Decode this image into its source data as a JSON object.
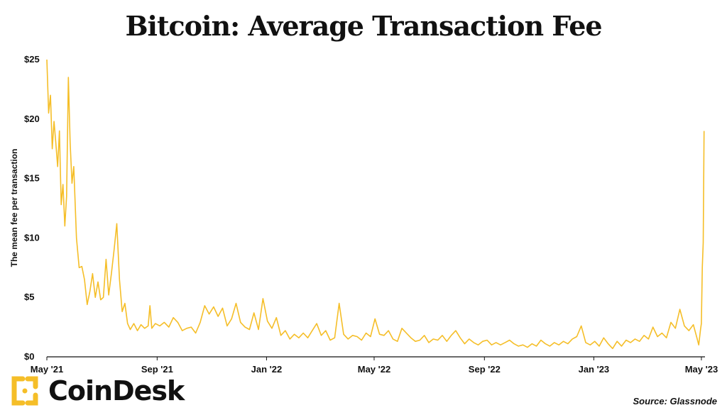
{
  "chart_data": {
    "type": "line",
    "title": "Bitcoin: Average Transaction Fee",
    "ylabel": "The mean fee per transaction",
    "xlabel": "",
    "ylim": [
      0,
      25
    ],
    "y_ticks": [
      0,
      5,
      10,
      15,
      20,
      25
    ],
    "y_tick_labels": [
      "$0",
      "$5",
      "$10",
      "$15",
      "$20",
      "$25"
    ],
    "x_ticks": [
      "2021-05-01",
      "2021-09-01",
      "2022-01-01",
      "2022-05-01",
      "2022-09-01",
      "2023-01-01",
      "2023-05-01"
    ],
    "x_tick_labels": [
      "May '21",
      "Sep '21",
      "Jan '22",
      "May '22",
      "Sep '22",
      "Jan '23",
      "May '23"
    ],
    "xlim": [
      "2021-05-01",
      "2023-05-05"
    ],
    "grid": false,
    "line_color": "#F5BE28",
    "series": [
      {
        "x": [
          "2021-05-01",
          "2021-05-03",
          "2021-05-05",
          "2021-05-07",
          "2021-05-09",
          "2021-05-11",
          "2021-05-13",
          "2021-05-15",
          "2021-05-17",
          "2021-05-19",
          "2021-05-21",
          "2021-05-23",
          "2021-05-25",
          "2021-05-27",
          "2021-05-29",
          "2021-05-31",
          "2021-06-03",
          "2021-06-06",
          "2021-06-09",
          "2021-06-12",
          "2021-06-15",
          "2021-06-18",
          "2021-06-21",
          "2021-06-24",
          "2021-06-27",
          "2021-06-30",
          "2021-07-03",
          "2021-07-06",
          "2021-07-09",
          "2021-07-12",
          "2021-07-15",
          "2021-07-18",
          "2021-07-21",
          "2021-07-24",
          "2021-07-27",
          "2021-07-30",
          "2021-08-02",
          "2021-08-06",
          "2021-08-10",
          "2021-08-14",
          "2021-08-18",
          "2021-08-22",
          "2021-08-24",
          "2021-08-26",
          "2021-08-30",
          "2021-09-04",
          "2021-09-09",
          "2021-09-14",
          "2021-09-19",
          "2021-09-24",
          "2021-09-29",
          "2021-10-04",
          "2021-10-09",
          "2021-10-14",
          "2021-10-19",
          "2021-10-24",
          "2021-10-29",
          "2021-11-03",
          "2021-11-08",
          "2021-11-13",
          "2021-11-18",
          "2021-11-23",
          "2021-11-28",
          "2021-12-03",
          "2021-12-08",
          "2021-12-13",
          "2021-12-18",
          "2021-12-23",
          "2021-12-28",
          "2022-01-02",
          "2022-01-07",
          "2022-01-12",
          "2022-01-17",
          "2022-01-22",
          "2022-01-27",
          "2022-02-01",
          "2022-02-06",
          "2022-02-11",
          "2022-02-16",
          "2022-02-21",
          "2022-02-26",
          "2022-03-03",
          "2022-03-08",
          "2022-03-13",
          "2022-03-18",
          "2022-03-23",
          "2022-03-28",
          "2022-04-02",
          "2022-04-07",
          "2022-04-12",
          "2022-04-17",
          "2022-04-22",
          "2022-04-27",
          "2022-05-02",
          "2022-05-07",
          "2022-05-12",
          "2022-05-17",
          "2022-05-22",
          "2022-05-27",
          "2022-06-01",
          "2022-06-06",
          "2022-06-11",
          "2022-06-16",
          "2022-06-21",
          "2022-06-26",
          "2022-07-01",
          "2022-07-06",
          "2022-07-11",
          "2022-07-16",
          "2022-07-21",
          "2022-07-26",
          "2022-07-31",
          "2022-08-05",
          "2022-08-10",
          "2022-08-15",
          "2022-08-20",
          "2022-08-25",
          "2022-08-30",
          "2022-09-04",
          "2022-09-09",
          "2022-09-14",
          "2022-09-19",
          "2022-09-24",
          "2022-09-29",
          "2022-10-04",
          "2022-10-09",
          "2022-10-14",
          "2022-10-19",
          "2022-10-24",
          "2022-10-29",
          "2022-11-03",
          "2022-11-08",
          "2022-11-13",
          "2022-11-18",
          "2022-11-23",
          "2022-11-28",
          "2022-12-03",
          "2022-12-08",
          "2022-12-13",
          "2022-12-18",
          "2022-12-23",
          "2022-12-28",
          "2023-01-02",
          "2023-01-07",
          "2023-01-12",
          "2023-01-17",
          "2023-01-22",
          "2023-01-27",
          "2023-02-01",
          "2023-02-06",
          "2023-02-11",
          "2023-02-16",
          "2023-02-21",
          "2023-02-26",
          "2023-03-03",
          "2023-03-08",
          "2023-03-13",
          "2023-03-18",
          "2023-03-23",
          "2023-03-28",
          "2023-04-02",
          "2023-04-07",
          "2023-04-12",
          "2023-04-17",
          "2023-04-22",
          "2023-04-26",
          "2023-04-28",
          "2023-04-30",
          "2023-05-01",
          "2023-05-02",
          "2023-05-03",
          "2023-05-04"
        ],
        "y": [
          25.0,
          20.5,
          22.0,
          17.5,
          19.8,
          18.0,
          16.0,
          19.0,
          12.8,
          14.5,
          11.0,
          13.5,
          23.5,
          18.0,
          14.6,
          16.0,
          10.0,
          7.5,
          7.6,
          6.5,
          4.4,
          5.5,
          7.0,
          5.0,
          6.3,
          4.8,
          5.0,
          8.2,
          5.2,
          7.0,
          9.0,
          11.2,
          6.5,
          3.8,
          4.5,
          2.8,
          2.3,
          2.8,
          2.2,
          2.7,
          2.4,
          2.6,
          4.3,
          2.4,
          2.8,
          2.6,
          2.9,
          2.5,
          3.3,
          2.9,
          2.2,
          2.4,
          2.5,
          2.0,
          2.9,
          4.3,
          3.6,
          4.2,
          3.4,
          4.1,
          2.6,
          3.2,
          4.5,
          2.9,
          2.5,
          2.3,
          3.7,
          2.3,
          4.9,
          3.0,
          2.4,
          3.3,
          1.8,
          2.2,
          1.5,
          1.9,
          1.6,
          2.0,
          1.6,
          2.2,
          2.8,
          1.8,
          2.2,
          1.4,
          1.6,
          4.5,
          1.9,
          1.5,
          1.8,
          1.7,
          1.4,
          2.0,
          1.7,
          3.2,
          1.9,
          1.8,
          2.2,
          1.5,
          1.3,
          2.4,
          2.0,
          1.6,
          1.3,
          1.4,
          1.8,
          1.2,
          1.5,
          1.4,
          1.8,
          1.3,
          1.8,
          2.2,
          1.6,
          1.1,
          1.5,
          1.2,
          1.0,
          1.3,
          1.4,
          1.0,
          1.2,
          1.0,
          1.2,
          1.4,
          1.1,
          0.9,
          1.0,
          0.8,
          1.1,
          0.9,
          1.4,
          1.1,
          0.9,
          1.2,
          1.0,
          1.3,
          1.1,
          1.5,
          1.7,
          2.6,
          1.2,
          1.0,
          1.3,
          0.9,
          1.6,
          1.1,
          0.7,
          1.3,
          0.9,
          1.4,
          1.2,
          1.5,
          1.3,
          1.8,
          1.5,
          2.5,
          1.7,
          2.0,
          1.6,
          2.9,
          2.4,
          4.0,
          2.6,
          2.2,
          2.7,
          1.6,
          1.0,
          2.3,
          2.8,
          7.5,
          9.6,
          19.0
        ]
      }
    ]
  },
  "logo": {
    "text": "CoinDesk",
    "color": "#F5BE28"
  },
  "source": "Source: Glassnode"
}
